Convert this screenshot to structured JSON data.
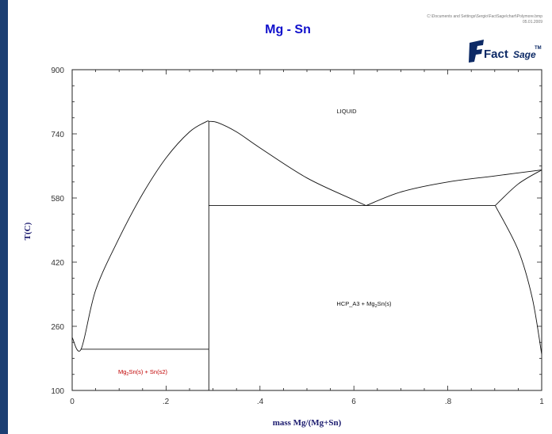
{
  "title": "Mg - Sn",
  "file_path": "C:\\Documents and Settings\\Sergio\\FactSage\\chart\\Polymore.bmp",
  "date": "05.01.2009",
  "logo": {
    "main": "Fact",
    "sub": "Sage",
    "tm": "TM"
  },
  "x_axis_title": "mass Mg/(Mg+Sn)",
  "y_axis_title": "T(C)",
  "x_tick_labels": [
    "0",
    ".2",
    ".4",
    "6",
    ".8",
    "1"
  ],
  "y_tick_labels": [
    "900",
    "740",
    "580",
    "420",
    "260",
    "100"
  ],
  "regions": {
    "liquid": "LIQUID",
    "hcp_prefix": "HCP_A3 + Mg",
    "hcp_sub": "2",
    "hcp_suffix": "Sn(s)",
    "left_prefix": "Mg",
    "left_sub": "2",
    "left_suffix": "Sn(s) + Sn(s2)"
  },
  "colors": {
    "title": "#1010cc",
    "left_region_label": "#c00000",
    "frame": "#1c3f73",
    "logo": "#0d2a66"
  },
  "chart_data": {
    "type": "line",
    "xlabel": "mass Mg/(Mg+Sn)",
    "ylabel": "T(C)",
    "xlim": [
      0,
      1
    ],
    "ylim": [
      100,
      900
    ],
    "series": [
      {
        "id": "liquidus-sn-side",
        "x": [
          0,
          0.019,
          0.05,
          0.1,
          0.15,
          0.2,
          0.25,
          0.285,
          0.291
        ],
        "y": [
          231.9,
          203,
          350,
          480,
          590,
          680,
          745,
          770,
          771
        ]
      },
      {
        "id": "liquidus-mg2sn-to-eutectic",
        "x": [
          0.291,
          0.31,
          0.35,
          0.4,
          0.5,
          0.6,
          0.626
        ],
        "y": [
          771,
          768,
          745,
          705,
          630,
          575,
          561
        ]
      },
      {
        "id": "liquidus-mg-side",
        "x": [
          0.626,
          0.7,
          0.8,
          0.9,
          1.0
        ],
        "y": [
          561,
          595,
          620,
          635,
          650
        ]
      },
      {
        "id": "solidus-hcp",
        "x": [
          0.901,
          0.95,
          1.0
        ],
        "y": [
          561,
          615,
          650
        ]
      },
      {
        "id": "solvus-hcp",
        "x": [
          0.901,
          0.95,
          0.98,
          1.0
        ],
        "y": [
          561,
          450,
          330,
          190
        ]
      },
      {
        "id": "eutectic-sn-side",
        "x": [
          0.019,
          0.291
        ],
        "y": [
          203,
          203
        ]
      },
      {
        "id": "eutectic-mg-side",
        "x": [
          0.291,
          0.901
        ],
        "y": [
          561,
          561
        ]
      },
      {
        "id": "mg2sn-line",
        "x": [
          0.291,
          0.291
        ],
        "y": [
          100,
          771
        ]
      }
    ]
  }
}
